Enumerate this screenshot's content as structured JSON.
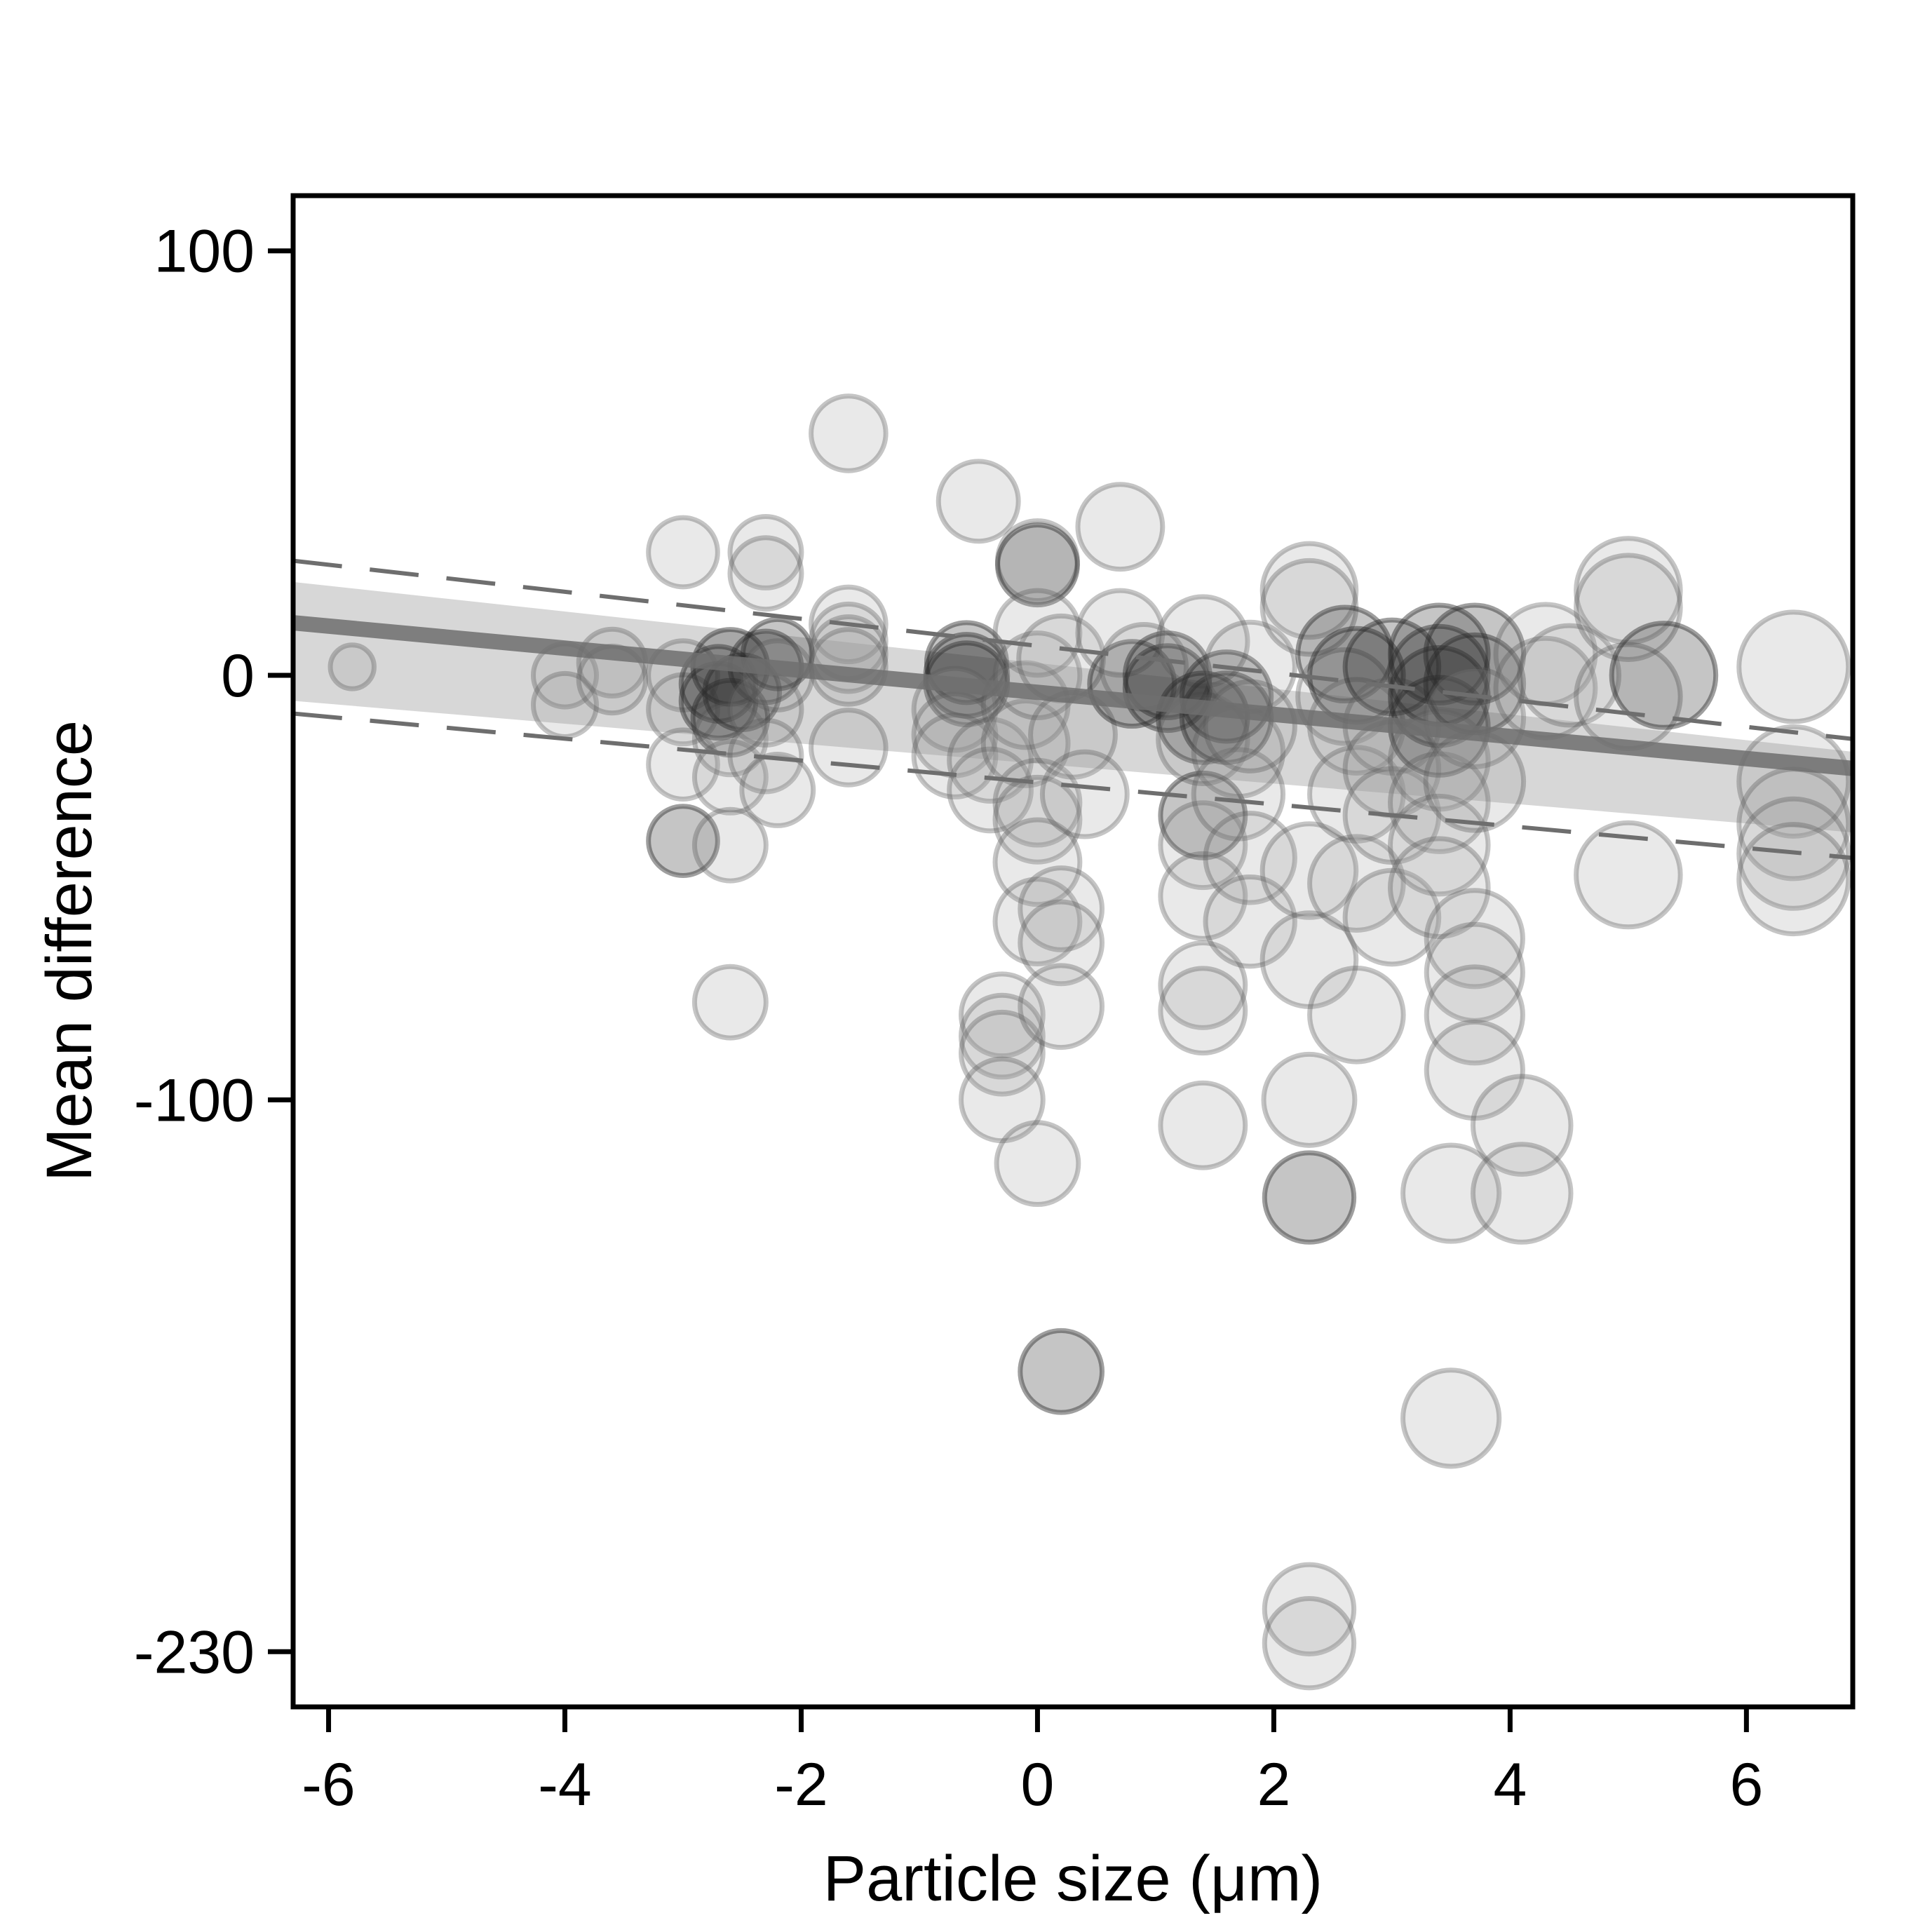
{
  "chart_data": {
    "type": "scatter",
    "title": "",
    "xlabel": "Particle size (μm)",
    "ylabel": "Mean difference",
    "xlim": [
      -6.3,
      6.9
    ],
    "ylim": [
      -243,
      113
    ],
    "x_ticks": [
      -6,
      -4,
      -2,
      0,
      2,
      4,
      6
    ],
    "y_ticks": [
      100,
      0,
      -100,
      -230
    ],
    "grid": false,
    "legend": "none",
    "colors": {
      "bubble_fill": "#9a9a9a",
      "bubble_dark": "#2e2e2e",
      "regression_line": "#6e6e6e",
      "confidence_band": "#8c8c8c"
    },
    "regression": {
      "intercept": -4,
      "slope": -2.6,
      "ci_lower_at_xmin": -6,
      "ci_upper_at_xmin": 22,
      "ci_lower_at_xmax": -37,
      "ci_upper_at_xmax": -18,
      "pred_lower_at_xmin": -9,
      "pred_upper_at_xmin": 27,
      "pred_lower_at_xmax": -43,
      "pred_upper_at_xmax": -15
    },
    "points": [
      {
        "x": -5.8,
        "y": 2,
        "size": 0.12
      },
      {
        "x": -4.0,
        "y": 0,
        "size": 0.25
      },
      {
        "x": -4.0,
        "y": -7,
        "size": 0.25
      },
      {
        "x": -3.6,
        "y": 3,
        "size": 0.28
      },
      {
        "x": -3.6,
        "y": -1,
        "size": 0.28
      },
      {
        "x": -3.0,
        "y": 29,
        "size": 0.3
      },
      {
        "x": -3.0,
        "y": 0,
        "size": 0.3
      },
      {
        "x": -3.0,
        "y": -8,
        "size": 0.3
      },
      {
        "x": -3.0,
        "y": -21,
        "size": 0.3
      },
      {
        "x": -3.0,
        "y": -39,
        "size": 0.3,
        "dark": true
      },
      {
        "x": -2.7,
        "y": -2,
        "size": 0.35,
        "dark": true
      },
      {
        "x": -2.7,
        "y": -6,
        "size": 0.35,
        "dark": true
      },
      {
        "x": -2.6,
        "y": -10,
        "size": 0.35,
        "dark": true
      },
      {
        "x": -2.6,
        "y": 2,
        "size": 0.35,
        "dark": true
      },
      {
        "x": -2.6,
        "y": -15,
        "size": 0.32
      },
      {
        "x": -2.6,
        "y": -24,
        "size": 0.32
      },
      {
        "x": -2.6,
        "y": -40,
        "size": 0.32
      },
      {
        "x": -2.6,
        "y": -77,
        "size": 0.32
      },
      {
        "x": -2.5,
        "y": -4,
        "size": 0.35,
        "dark": true
      },
      {
        "x": -2.3,
        "y": 29,
        "size": 0.32
      },
      {
        "x": -2.3,
        "y": 24,
        "size": 0.32
      },
      {
        "x": -2.3,
        "y": 2,
        "size": 0.32,
        "dark": true
      },
      {
        "x": -2.3,
        "y": -8,
        "size": 0.32
      },
      {
        "x": -2.3,
        "y": -19,
        "size": 0.32
      },
      {
        "x": -2.2,
        "y": -27,
        "size": 0.32
      },
      {
        "x": -2.2,
        "y": 5,
        "size": 0.3,
        "dark": true
      },
      {
        "x": -2.2,
        "y": 0,
        "size": 0.3
      },
      {
        "x": -1.6,
        "y": 57,
        "size": 0.35
      },
      {
        "x": -1.6,
        "y": 12,
        "size": 0.35
      },
      {
        "x": -1.6,
        "y": 8,
        "size": 0.35
      },
      {
        "x": -1.6,
        "y": 5,
        "size": 0.35
      },
      {
        "x": -1.6,
        "y": 2,
        "size": 0.35
      },
      {
        "x": -1.6,
        "y": -17,
        "size": 0.35
      },
      {
        "x": -0.6,
        "y": 3,
        "size": 0.4,
        "dark": true
      },
      {
        "x": -0.6,
        "y": 0,
        "size": 0.42,
        "dark": true
      },
      {
        "x": -0.6,
        "y": -2,
        "size": 0.42,
        "dark": true
      },
      {
        "x": -0.7,
        "y": -8,
        "size": 0.42
      },
      {
        "x": -0.7,
        "y": -14,
        "size": 0.42
      },
      {
        "x": -0.7,
        "y": -19,
        "size": 0.42
      },
      {
        "x": -0.5,
        "y": 41,
        "size": 0.4
      },
      {
        "x": -0.4,
        "y": -20,
        "size": 0.42
      },
      {
        "x": -0.4,
        "y": -27,
        "size": 0.42
      },
      {
        "x": -0.3,
        "y": -80,
        "size": 0.42
      },
      {
        "x": -0.3,
        "y": -85,
        "size": 0.42
      },
      {
        "x": -0.3,
        "y": -89,
        "size": 0.42
      },
      {
        "x": -0.3,
        "y": -100,
        "size": 0.42
      },
      {
        "x": -0.1,
        "y": -7,
        "size": 0.45
      },
      {
        "x": -0.1,
        "y": -16,
        "size": 0.45
      },
      {
        "x": 0.0,
        "y": 27,
        "size": 0.4
      },
      {
        "x": 0.0,
        "y": 26,
        "size": 0.4,
        "dark": true
      },
      {
        "x": 0.0,
        "y": 10,
        "size": 0.45
      },
      {
        "x": 0.0,
        "y": 0,
        "size": 0.45
      },
      {
        "x": 0.0,
        "y": -30,
        "size": 0.45
      },
      {
        "x": 0.0,
        "y": -34,
        "size": 0.45
      },
      {
        "x": 0.0,
        "y": -44,
        "size": 0.45
      },
      {
        "x": 0.0,
        "y": -58,
        "size": 0.45
      },
      {
        "x": 0.0,
        "y": -115,
        "size": 0.42
      },
      {
        "x": 0.2,
        "y": 4,
        "size": 0.45
      },
      {
        "x": 0.2,
        "y": -55,
        "size": 0.42
      },
      {
        "x": 0.2,
        "y": -63,
        "size": 0.42
      },
      {
        "x": 0.2,
        "y": -78,
        "size": 0.42
      },
      {
        "x": 0.2,
        "y": -164,
        "size": 0.42,
        "dark": true
      },
      {
        "x": 0.3,
        "y": -14,
        "size": 0.45
      },
      {
        "x": 0.4,
        "y": -28,
        "size": 0.45
      },
      {
        "x": 0.7,
        "y": 35,
        "size": 0.45
      },
      {
        "x": 0.7,
        "y": 10,
        "size": 0.45
      },
      {
        "x": 0.8,
        "y": -2,
        "size": 0.45,
        "dark": true
      },
      {
        "x": 0.9,
        "y": 2,
        "size": 0.45
      },
      {
        "x": 1.1,
        "y": 0,
        "size": 0.45,
        "dark": true
      },
      {
        "x": 1.1,
        "y": -3,
        "size": 0.45,
        "dark": true
      },
      {
        "x": 1.4,
        "y": 8,
        "size": 0.5
      },
      {
        "x": 1.4,
        "y": -10,
        "size": 0.5,
        "dark": true
      },
      {
        "x": 1.4,
        "y": -15,
        "size": 0.5
      },
      {
        "x": 1.4,
        "y": -33,
        "size": 0.45,
        "dark": true
      },
      {
        "x": 1.4,
        "y": -40,
        "size": 0.45
      },
      {
        "x": 1.4,
        "y": -52,
        "size": 0.45
      },
      {
        "x": 1.4,
        "y": -73,
        "size": 0.45
      },
      {
        "x": 1.4,
        "y": -79,
        "size": 0.45
      },
      {
        "x": 1.4,
        "y": -106,
        "size": 0.45
      },
      {
        "x": 1.6,
        "y": -5,
        "size": 0.5,
        "dark": true
      },
      {
        "x": 1.6,
        "y": -10,
        "size": 0.5,
        "dark": true
      },
      {
        "x": 1.7,
        "y": -18,
        "size": 0.5
      },
      {
        "x": 1.7,
        "y": -28,
        "size": 0.5
      },
      {
        "x": 1.8,
        "y": 2,
        "size": 0.5
      },
      {
        "x": 1.8,
        "y": -12,
        "size": 0.5
      },
      {
        "x": 1.8,
        "y": -43,
        "size": 0.5
      },
      {
        "x": 1.8,
        "y": -58,
        "size": 0.5
      },
      {
        "x": 2.3,
        "y": 20,
        "size": 0.55
      },
      {
        "x": 2.3,
        "y": 16,
        "size": 0.55
      },
      {
        "x": 2.3,
        "y": -46,
        "size": 0.55
      },
      {
        "x": 2.3,
        "y": -67,
        "size": 0.55
      },
      {
        "x": 2.3,
        "y": -100,
        "size": 0.52
      },
      {
        "x": 2.3,
        "y": -123,
        "size": 0.5,
        "dark": true
      },
      {
        "x": 2.3,
        "y": -220,
        "size": 0.5
      },
      {
        "x": 2.3,
        "y": -228,
        "size": 0.5
      },
      {
        "x": 2.6,
        "y": 5,
        "size": 0.55,
        "dark": true
      },
      {
        "x": 2.6,
        "y": -5,
        "size": 0.55
      },
      {
        "x": 2.7,
        "y": 0,
        "size": 0.55,
        "dark": true
      },
      {
        "x": 2.7,
        "y": -12,
        "size": 0.55
      },
      {
        "x": 2.7,
        "y": -28,
        "size": 0.55
      },
      {
        "x": 2.7,
        "y": -49,
        "size": 0.55
      },
      {
        "x": 2.7,
        "y": -80,
        "size": 0.55
      },
      {
        "x": 3.0,
        "y": 2,
        "size": 0.55,
        "dark": true
      },
      {
        "x": 3.0,
        "y": -12,
        "size": 0.55
      },
      {
        "x": 3.0,
        "y": -22,
        "size": 0.55
      },
      {
        "x": 3.0,
        "y": -33,
        "size": 0.55
      },
      {
        "x": 3.0,
        "y": -57,
        "size": 0.55
      },
      {
        "x": 3.4,
        "y": 5,
        "size": 0.6,
        "dark": true
      },
      {
        "x": 3.4,
        "y": 0,
        "size": 0.6,
        "dark": true
      },
      {
        "x": 3.4,
        "y": -5,
        "size": 0.6,
        "dark": true
      },
      {
        "x": 3.4,
        "y": -12,
        "size": 0.6,
        "dark": true
      },
      {
        "x": 3.4,
        "y": -20,
        "size": 0.6
      },
      {
        "x": 3.4,
        "y": -30,
        "size": 0.6
      },
      {
        "x": 3.4,
        "y": -40,
        "size": 0.6
      },
      {
        "x": 3.4,
        "y": -50,
        "size": 0.6
      },
      {
        "x": 3.5,
        "y": -122,
        "size": 0.58
      },
      {
        "x": 3.5,
        "y": -175,
        "size": 0.58
      },
      {
        "x": 3.7,
        "y": 5,
        "size": 0.6,
        "dark": true
      },
      {
        "x": 3.7,
        "y": -2,
        "size": 0.6,
        "dark": true
      },
      {
        "x": 3.7,
        "y": -10,
        "size": 0.6
      },
      {
        "x": 3.7,
        "y": -25,
        "size": 0.6
      },
      {
        "x": 3.7,
        "y": -62,
        "size": 0.58
      },
      {
        "x": 3.7,
        "y": -70,
        "size": 0.58
      },
      {
        "x": 3.7,
        "y": -80,
        "size": 0.58
      },
      {
        "x": 3.7,
        "y": -93,
        "size": 0.58
      },
      {
        "x": 4.1,
        "y": -106,
        "size": 0.6
      },
      {
        "x": 4.1,
        "y": -122,
        "size": 0.6
      },
      {
        "x": 4.3,
        "y": 5,
        "size": 0.62
      },
      {
        "x": 4.3,
        "y": -3,
        "size": 0.62
      },
      {
        "x": 4.5,
        "y": 0,
        "size": 0.62
      },
      {
        "x": 5.0,
        "y": 20,
        "size": 0.68
      },
      {
        "x": 5.0,
        "y": 16,
        "size": 0.68
      },
      {
        "x": 5.0,
        "y": -5,
        "size": 0.68
      },
      {
        "x": 5.0,
        "y": -47,
        "size": 0.68
      },
      {
        "x": 5.3,
        "y": 0,
        "size": 0.68,
        "dark": true
      },
      {
        "x": 6.4,
        "y": 2,
        "size": 0.75
      },
      {
        "x": 6.4,
        "y": -25,
        "size": 0.75
      },
      {
        "x": 6.4,
        "y": -35,
        "size": 0.75
      },
      {
        "x": 6.4,
        "y": -42,
        "size": 0.75
      },
      {
        "x": 6.4,
        "y": -48,
        "size": 0.75
      }
    ]
  }
}
